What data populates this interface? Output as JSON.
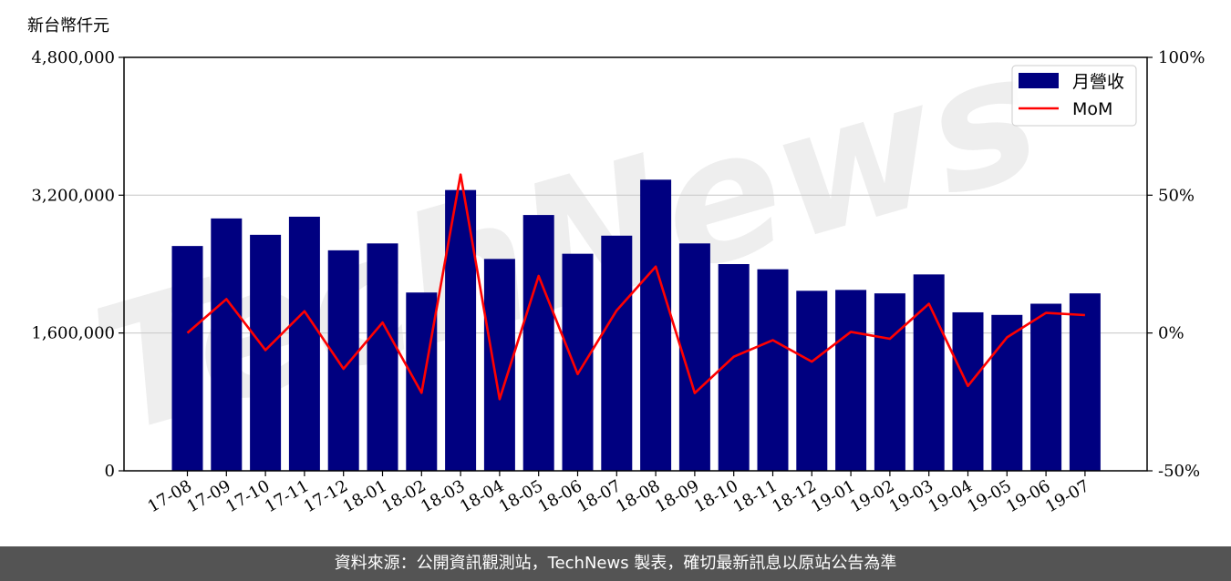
{
  "chart_data": {
    "type": "bar",
    "y_unit_label": "新台幣仟元",
    "categories": [
      "17-08",
      "17-09",
      "17-10",
      "17-11",
      "17-12",
      "18-01",
      "18-02",
      "18-03",
      "18-04",
      "18-05",
      "18-06",
      "18-07",
      "18-08",
      "18-09",
      "18-10",
      "18-11",
      "18-12",
      "19-01",
      "19-02",
      "19-03",
      "19-04",
      "19-05",
      "19-06",
      "19-07"
    ],
    "series": [
      {
        "name": "月營收",
        "kind": "bar",
        "axis": "left",
        "color": "#000080",
        "values": [
          2610000,
          2930000,
          2740000,
          2950000,
          2560000,
          2640000,
          2070000,
          3260000,
          2460000,
          2970000,
          2520000,
          2730000,
          3380000,
          2640000,
          2400000,
          2340000,
          2090000,
          2100000,
          2060000,
          2280000,
          1840000,
          1810000,
          1940000,
          2060000
        ]
      },
      {
        "name": "MoM",
        "kind": "line",
        "axis": "right",
        "color": "#ff0000",
        "values": [
          0,
          12.3,
          -6.2,
          7.9,
          -13.0,
          3.8,
          -21.7,
          57.5,
          -24.0,
          20.7,
          -14.9,
          8.2,
          24.1,
          -21.8,
          -8.6,
          -2.6,
          -10.4,
          0.4,
          -2.1,
          10.6,
          -19.2,
          -1.6,
          7.3,
          6.5
        ]
      }
    ],
    "ylim_left": [
      0,
      4800000
    ],
    "ylim_right": [
      -50,
      100
    ],
    "yticks_left": [
      "0",
      "1,600,000",
      "3,200,000",
      "4,800,000"
    ],
    "yticks_right": [
      "-50%",
      "0%",
      "50%",
      "100%"
    ],
    "grid": "horizontal",
    "legend_position": "top-right",
    "watermark": "TechNews"
  },
  "footer": {
    "source_text": "資料來源：公開資訊觀測站，TechNews 製表，確切最新訊息以原站公告為準"
  }
}
